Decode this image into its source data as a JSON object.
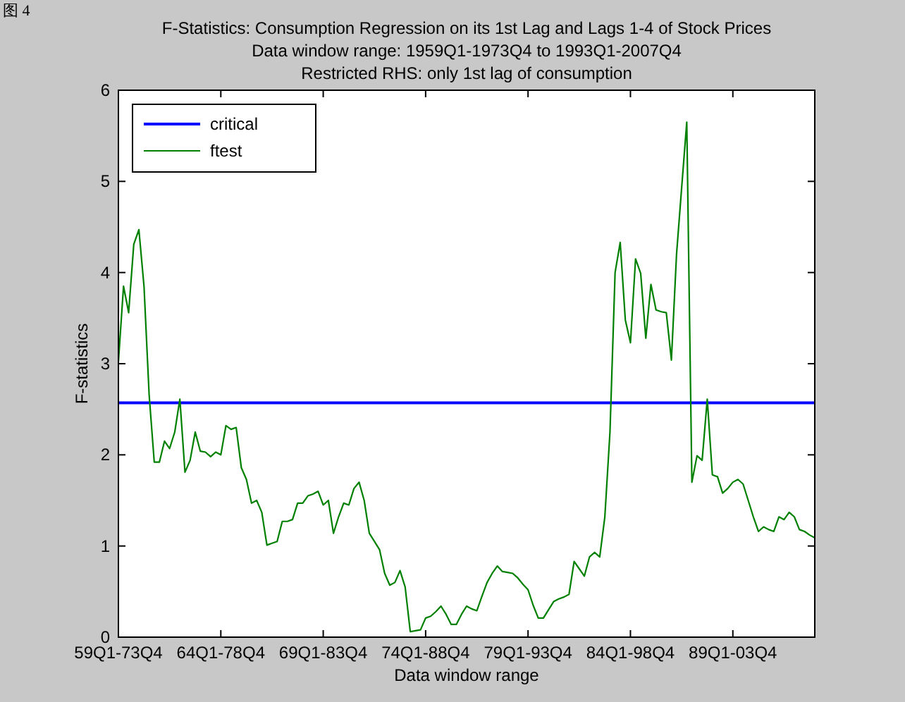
{
  "chart_data": {
    "type": "line",
    "title": "F-Statistics: Consumption Regression on its 1st Lag and Lags 1-4 of Stock Prices",
    "subtitle": "Data window range: 1959Q1-1973Q4 to 1993Q1-2007Q4\nRestricted RHS: only 1st lag of consumption",
    "xlabel": "Data window range",
    "ylabel": "F-statistics",
    "annotations": [
      "图 4"
    ],
    "categories": [
      "59Q1-73Q4",
      null,
      null,
      null,
      null,
      null,
      null,
      null,
      null,
      null,
      null,
      null,
      null,
      null,
      null,
      null,
      null,
      null,
      null,
      null,
      "64Q1-78Q4",
      null,
      null,
      null,
      null,
      null,
      null,
      null,
      null,
      null,
      null,
      null,
      null,
      null,
      null,
      null,
      null,
      null,
      null,
      null,
      "69Q1-83Q4",
      null,
      null,
      null,
      null,
      null,
      null,
      null,
      null,
      null,
      null,
      null,
      null,
      null,
      null,
      null,
      null,
      null,
      null,
      null,
      "74Q1-88Q4",
      null,
      null,
      null,
      null,
      null,
      null,
      null,
      null,
      null,
      null,
      null,
      null,
      null,
      null,
      null,
      null,
      null,
      null,
      null,
      "79Q1-93Q4",
      null,
      null,
      null,
      null,
      null,
      null,
      null,
      null,
      null,
      null,
      null,
      null,
      null,
      null,
      null,
      null,
      null,
      null,
      null,
      "84Q1-98Q4",
      null,
      null,
      null,
      null,
      null,
      null,
      null,
      null,
      null,
      null,
      null,
      null,
      null,
      null,
      null,
      null,
      null,
      null,
      null,
      "89Q1-03Q4",
      null,
      null,
      null,
      null,
      null,
      null,
      null,
      null,
      null,
      null,
      null,
      null,
      null,
      null,
      null,
      null
    ],
    "ylim": [
      0,
      6
    ],
    "yticks": [
      0,
      1,
      2,
      3,
      4,
      5,
      6
    ],
    "legend": "top left",
    "grid": false,
    "series": [
      {
        "name": "critical",
        "color": "#0000ff",
        "values": [
          2.57,
          2.57,
          2.57,
          2.57,
          2.57,
          2.57,
          2.57,
          2.57,
          2.57,
          2.57,
          2.57,
          2.57,
          2.57,
          2.57,
          2.57,
          2.57,
          2.57,
          2.57,
          2.57,
          2.57,
          2.57,
          2.57,
          2.57,
          2.57,
          2.57,
          2.57,
          2.57,
          2.57,
          2.57,
          2.57,
          2.57,
          2.57,
          2.57,
          2.57,
          2.57,
          2.57,
          2.57,
          2.57,
          2.57,
          2.57,
          2.57,
          2.57,
          2.57,
          2.57,
          2.57,
          2.57,
          2.57,
          2.57,
          2.57,
          2.57,
          2.57,
          2.57,
          2.57,
          2.57,
          2.57,
          2.57,
          2.57,
          2.57,
          2.57,
          2.57,
          2.57,
          2.57,
          2.57,
          2.57,
          2.57,
          2.57,
          2.57,
          2.57,
          2.57,
          2.57,
          2.57,
          2.57,
          2.57,
          2.57,
          2.57,
          2.57,
          2.57,
          2.57,
          2.57,
          2.57,
          2.57,
          2.57,
          2.57,
          2.57,
          2.57,
          2.57,
          2.57,
          2.57,
          2.57,
          2.57,
          2.57,
          2.57,
          2.57,
          2.57,
          2.57,
          2.57,
          2.57,
          2.57,
          2.57,
          2.57,
          2.57,
          2.57,
          2.57,
          2.57,
          2.57,
          2.57,
          2.57,
          2.57,
          2.57,
          2.57,
          2.57,
          2.57,
          2.57,
          2.57,
          2.57,
          2.57,
          2.57,
          2.57,
          2.57,
          2.57,
          2.57,
          2.57,
          2.57,
          2.57,
          2.57,
          2.57,
          2.57,
          2.57,
          2.57,
          2.57,
          2.57,
          2.57,
          2.57,
          2.57,
          2.57,
          2.57,
          2.57
        ]
      },
      {
        "name": "ftest",
        "color": "#008000",
        "values": [
          3.02,
          3.85,
          3.56,
          4.31,
          4.47,
          3.85,
          2.66,
          1.92,
          1.92,
          2.15,
          2.07,
          2.25,
          2.61,
          1.81,
          1.94,
          2.25,
          2.04,
          2.03,
          1.98,
          2.03,
          2.0,
          2.32,
          2.28,
          2.3,
          1.86,
          1.73,
          1.47,
          1.5,
          1.37,
          1.01,
          1.03,
          1.05,
          1.27,
          1.27,
          1.29,
          1.47,
          1.47,
          1.55,
          1.57,
          1.6,
          1.45,
          1.5,
          1.14,
          1.32,
          1.47,
          1.45,
          1.63,
          1.7,
          1.5,
          1.14,
          1.05,
          0.96,
          0.7,
          0.57,
          0.6,
          0.73,
          0.55,
          0.06,
          0.07,
          0.08,
          0.21,
          0.23,
          0.28,
          0.34,
          0.25,
          0.14,
          0.14,
          0.25,
          0.34,
          0.31,
          0.29,
          0.45,
          0.6,
          0.7,
          0.78,
          0.72,
          0.71,
          0.7,
          0.65,
          0.58,
          0.52,
          0.35,
          0.21,
          0.21,
          0.3,
          0.39,
          0.42,
          0.44,
          0.47,
          0.83,
          0.75,
          0.67,
          0.88,
          0.93,
          0.88,
          1.32,
          2.25,
          4.0,
          4.33,
          3.48,
          3.23,
          4.15,
          3.99,
          3.28,
          3.87,
          3.59,
          3.57,
          3.56,
          3.04,
          4.2,
          4.93,
          5.65,
          1.7,
          1.99,
          1.94,
          2.61,
          1.78,
          1.76,
          1.58,
          1.63,
          1.7,
          1.73,
          1.68,
          1.5,
          1.32,
          1.16,
          1.21,
          1.18,
          1.16,
          1.32,
          1.29,
          1.37,
          1.32,
          1.18,
          1.16,
          1.12,
          1.09
        ]
      }
    ]
  }
}
